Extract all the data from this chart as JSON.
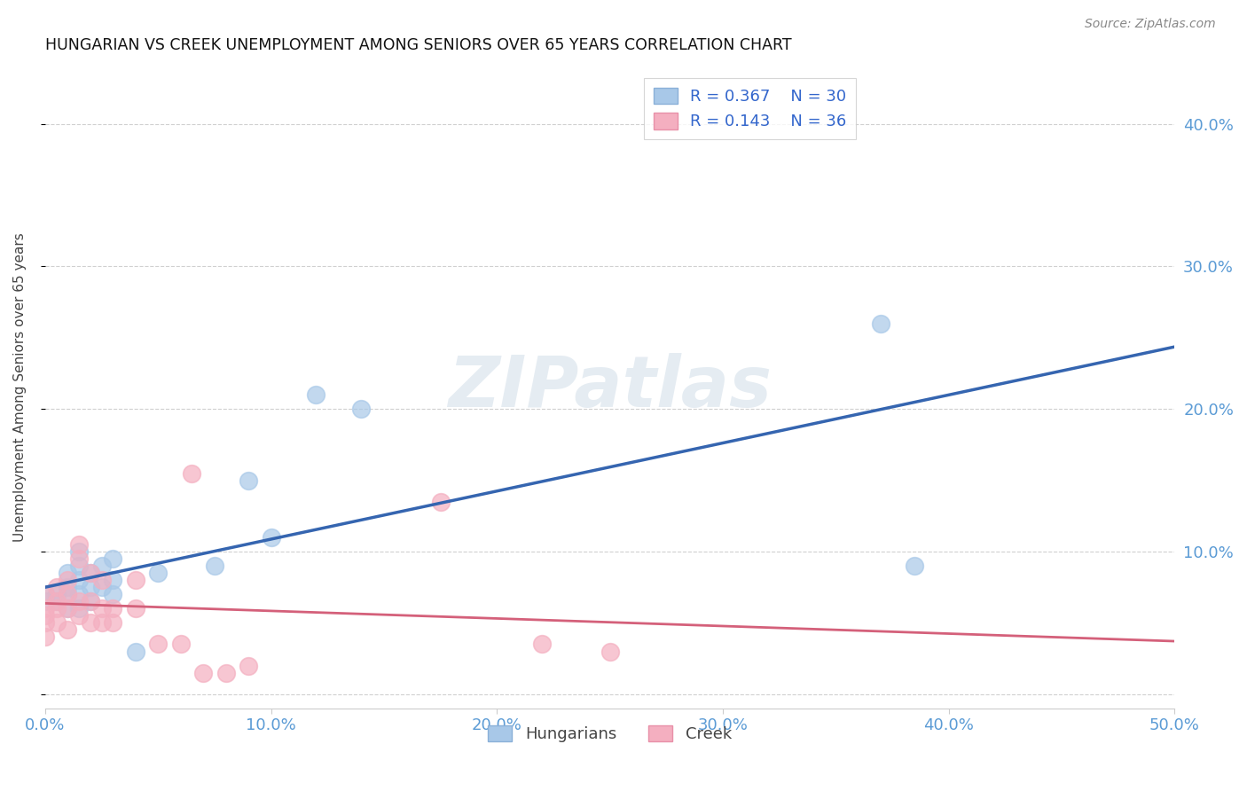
{
  "title": "HUNGARIAN VS CREEK UNEMPLOYMENT AMONG SENIORS OVER 65 YEARS CORRELATION CHART",
  "source": "Source: ZipAtlas.com",
  "tick_color": "#5b9bd5",
  "ylabel": "Unemployment Among Seniors over 65 years",
  "xlim": [
    0.0,
    0.5
  ],
  "ylim": [
    -0.01,
    0.44
  ],
  "xticks": [
    0.0,
    0.1,
    0.2,
    0.3,
    0.4,
    0.5
  ],
  "yticks": [
    0.0,
    0.1,
    0.2,
    0.3,
    0.4
  ],
  "ytick_labels_right": [
    "",
    "10.0%",
    "20.0%",
    "30.0%",
    "40.0%"
  ],
  "xtick_labels": [
    "0.0%",
    "10.0%",
    "20.0%",
    "30.0%",
    "40.0%",
    "50.0%"
  ],
  "hungarian_color": "#a8c8e8",
  "creek_color": "#f4afc0",
  "hungarian_line_color": "#3565b0",
  "creek_line_color": "#d4607a",
  "hungarian_x": [
    0.0,
    0.0,
    0.005,
    0.005,
    0.01,
    0.01,
    0.01,
    0.01,
    0.015,
    0.015,
    0.015,
    0.015,
    0.015,
    0.02,
    0.02,
    0.02,
    0.025,
    0.025,
    0.03,
    0.03,
    0.03,
    0.04,
    0.05,
    0.075,
    0.09,
    0.1,
    0.12,
    0.14,
    0.37,
    0.385
  ],
  "hungarian_y": [
    0.065,
    0.07,
    0.065,
    0.07,
    0.06,
    0.07,
    0.075,
    0.085,
    0.06,
    0.07,
    0.08,
    0.09,
    0.1,
    0.065,
    0.075,
    0.085,
    0.075,
    0.09,
    0.07,
    0.08,
    0.095,
    0.03,
    0.085,
    0.09,
    0.15,
    0.11,
    0.21,
    0.2,
    0.26,
    0.09
  ],
  "creek_x": [
    0.0,
    0.0,
    0.0,
    0.0,
    0.0,
    0.005,
    0.005,
    0.005,
    0.005,
    0.01,
    0.01,
    0.01,
    0.01,
    0.015,
    0.015,
    0.015,
    0.015,
    0.02,
    0.02,
    0.02,
    0.025,
    0.025,
    0.025,
    0.03,
    0.03,
    0.04,
    0.04,
    0.05,
    0.06,
    0.065,
    0.07,
    0.08,
    0.09,
    0.175,
    0.22,
    0.25
  ],
  "creek_y": [
    0.04,
    0.05,
    0.055,
    0.06,
    0.07,
    0.05,
    0.06,
    0.065,
    0.075,
    0.045,
    0.06,
    0.07,
    0.08,
    0.055,
    0.065,
    0.095,
    0.105,
    0.05,
    0.065,
    0.085,
    0.05,
    0.06,
    0.08,
    0.05,
    0.06,
    0.06,
    0.08,
    0.035,
    0.035,
    0.155,
    0.015,
    0.015,
    0.02,
    0.135,
    0.035,
    0.03
  ],
  "watermark_text": "ZIPatlas",
  "background_color": "#ffffff",
  "grid_color": "#d0d0d0"
}
